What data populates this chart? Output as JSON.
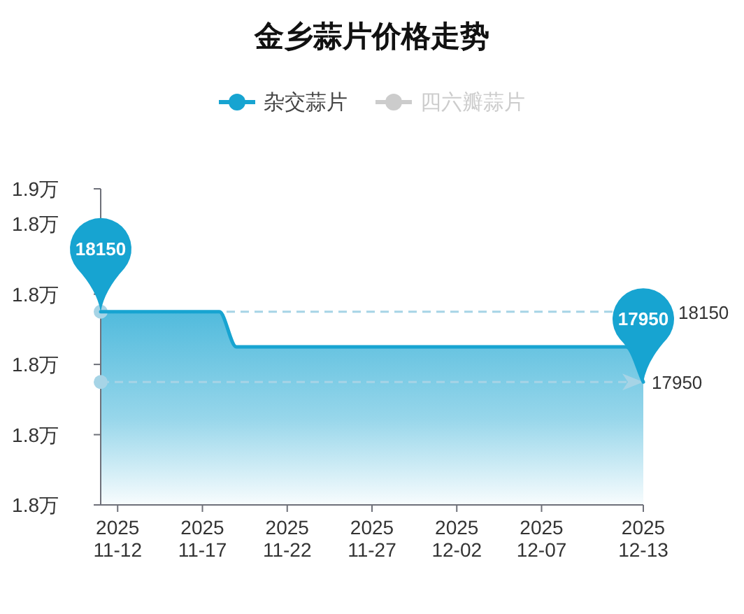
{
  "chart_data": {
    "type": "area",
    "title": "金乡蒜片价格走势",
    "legend": "top",
    "x": [
      "2025-11-11",
      "2025-11-18",
      "2025-11-19",
      "2025-12-12",
      "2025-12-13"
    ],
    "series": [
      {
        "name": "杂交蒜片",
        "color": "#17a4d1",
        "values": [
          1.815,
          1.815,
          1.805,
          1.805,
          1.795
        ]
      },
      {
        "name": "四六瓣蒜片",
        "color": "#cccccc",
        "values": [
          null,
          null,
          null,
          null,
          null
        ]
      }
    ],
    "xlim": [
      "2025-11-11",
      "2025-12-13"
    ],
    "xticks": [
      {
        "value": "2025-11-12",
        "label": "2025\n11-12"
      },
      {
        "value": "2025-11-17",
        "label": "2025\n11-17"
      },
      {
        "value": "2025-11-22",
        "label": "2025\n11-22"
      },
      {
        "value": "2025-11-27",
        "label": "2025\n11-27"
      },
      {
        "value": "2025-12-02",
        "label": "2025\n12-02"
      },
      {
        "value": "2025-12-07",
        "label": "2025\n12-07"
      },
      {
        "value": "2025-12-13",
        "label": "2025\n12-13"
      }
    ],
    "ylim": [
      1.76,
      1.85
    ],
    "yticks": [
      {
        "value": 1.76,
        "label": "1.8万"
      },
      {
        "value": 1.78,
        "label": "1.8万"
      },
      {
        "value": 1.8,
        "label": "1.8万"
      },
      {
        "value": 1.82,
        "label": "1.8万"
      },
      {
        "value": 1.84,
        "label": "1.8万"
      },
      {
        "value": 1.85,
        "label": "1.9万"
      }
    ],
    "ref_lines": [
      {
        "axis": "y",
        "value": 1.815,
        "color": "#a6d4e6",
        "line_style": "dashed"
      },
      {
        "axis": "y",
        "value": 1.795,
        "color": "#a6d4e6",
        "line_style": "dashed"
      }
    ],
    "annotations": [
      {
        "text": "18150",
        "x": "2025-11-11",
        "y": 1.815
      },
      {
        "text": "17950",
        "x": "2025-12-13",
        "y": 1.795
      },
      "18150",
      "17950"
    ]
  }
}
